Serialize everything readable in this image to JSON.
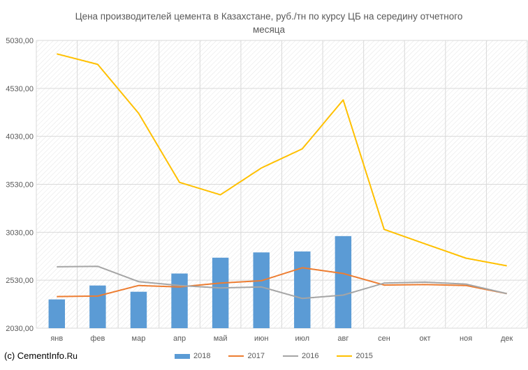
{
  "chart_data": {
    "type": "bar",
    "title": "Цена производителей цемента в Казахстане, руб./тн по курсу ЦБ на середину отчетного месяца",
    "title_lines": [
      "Цена производителей цемента в Казахстане, руб./тн по курсу ЦБ на середину отчетного",
      "месяца"
    ],
    "categories": [
      "янв",
      "фев",
      "мар",
      "апр",
      "май",
      "июн",
      "июл",
      "авг",
      "сен",
      "окт",
      "ноя",
      "дек"
    ],
    "ylim": [
      2030,
      5030
    ],
    "yticks": [
      "2030,00",
      "2530,00",
      "3030,00",
      "3530,00",
      "4030,00",
      "4530,00",
      "5030,00"
    ],
    "grid": true,
    "legend_position": "bottom",
    "series": [
      {
        "name": "2018",
        "kind": "bar",
        "color": "#5b9bd5",
        "values": [
          2330,
          2475,
          2410,
          2600,
          2765,
          2820,
          2830,
          2990,
          null,
          null,
          null,
          null
        ]
      },
      {
        "name": "2017",
        "kind": "line",
        "color": "#ed7d31",
        "values": [
          2360,
          2365,
          2475,
          2460,
          2500,
          2525,
          2660,
          2600,
          2480,
          2485,
          2475,
          2390
        ]
      },
      {
        "name": "2016",
        "kind": "line",
        "color": "#a5a5a5",
        "values": [
          2670,
          2675,
          2515,
          2475,
          2450,
          2460,
          2340,
          2375,
          2500,
          2510,
          2490,
          2390
        ]
      },
      {
        "name": "2015",
        "kind": "line",
        "color": "#ffc000",
        "values": [
          4890,
          4780,
          4270,
          3550,
          3420,
          3700,
          3900,
          4410,
          3060,
          2910,
          2760,
          2680
        ]
      }
    ]
  },
  "footer": {
    "prefix": "(c) CementInfo.",
    "suffix": "Ru"
  }
}
